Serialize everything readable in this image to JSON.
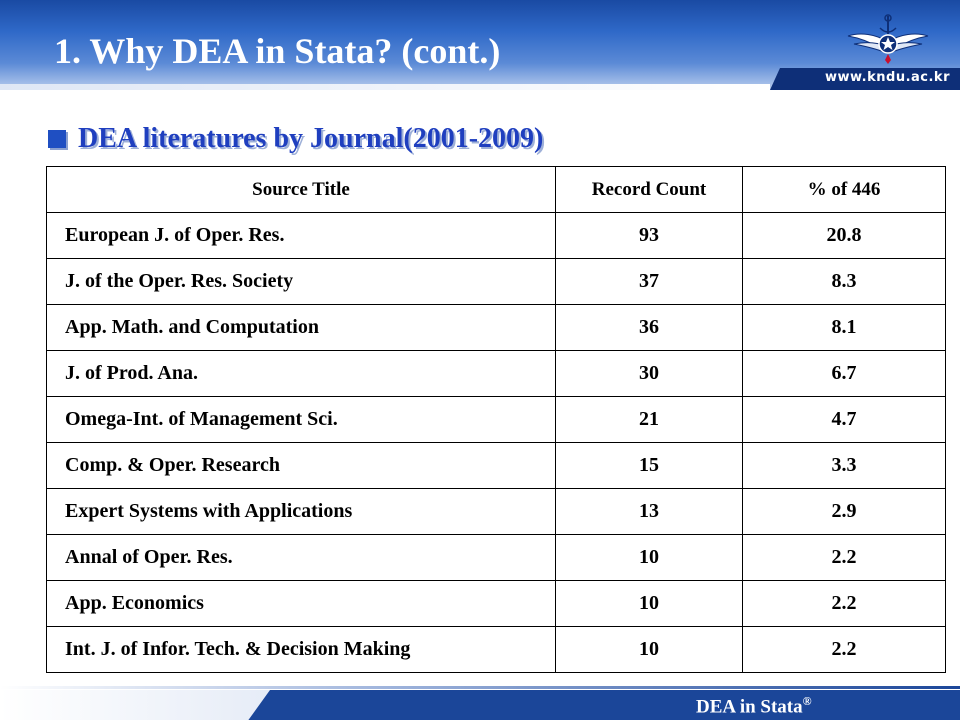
{
  "header": {
    "title": "1. Why DEA in Stata? (cont.)",
    "site_url": "www.kndu.ac.kr"
  },
  "section": {
    "heading": "DEA literatures by Journal(2001-2009)"
  },
  "table": {
    "headers": [
      "Source Title",
      "Record Count",
      "% of 446"
    ],
    "rows": [
      {
        "title": "European J. of Oper. Res.",
        "count": "93",
        "percent": "20.8"
      },
      {
        "title": "J. of the Oper. Res. Society",
        "count": "37",
        "percent": "8.3"
      },
      {
        "title": "App. Math. and Computation",
        "count": "36",
        "percent": "8.1"
      },
      {
        "title": "J. of Prod. Ana.",
        "count": "30",
        "percent": "6.7"
      },
      {
        "title": "Omega-Int. of Management Sci.",
        "count": "21",
        "percent": "4.7"
      },
      {
        "title": "Comp. & Oper. Research",
        "count": "15",
        "percent": "3.3"
      },
      {
        "title": "Expert Systems with Applications",
        "count": "13",
        "percent": "2.9"
      },
      {
        "title": "Annal of Oper. Res.",
        "count": "10",
        "percent": "2.2"
      },
      {
        "title": "App. Economics",
        "count": "10",
        "percent": "2.2"
      },
      {
        "title": "Int. J. of Infor. Tech. & Decision Making",
        "count": "10",
        "percent": "2.2"
      }
    ]
  },
  "footer": {
    "label": "DEA in Stata",
    "registered_mark": "®"
  },
  "colors": {
    "header_blue": "#2f69c8",
    "heading_blue": "#1f3fbf",
    "footer_blue": "#1b4699"
  },
  "icons": {
    "emblem": "winged-anchor-star-emblem-icon",
    "bullet": "square-bullet-icon"
  }
}
